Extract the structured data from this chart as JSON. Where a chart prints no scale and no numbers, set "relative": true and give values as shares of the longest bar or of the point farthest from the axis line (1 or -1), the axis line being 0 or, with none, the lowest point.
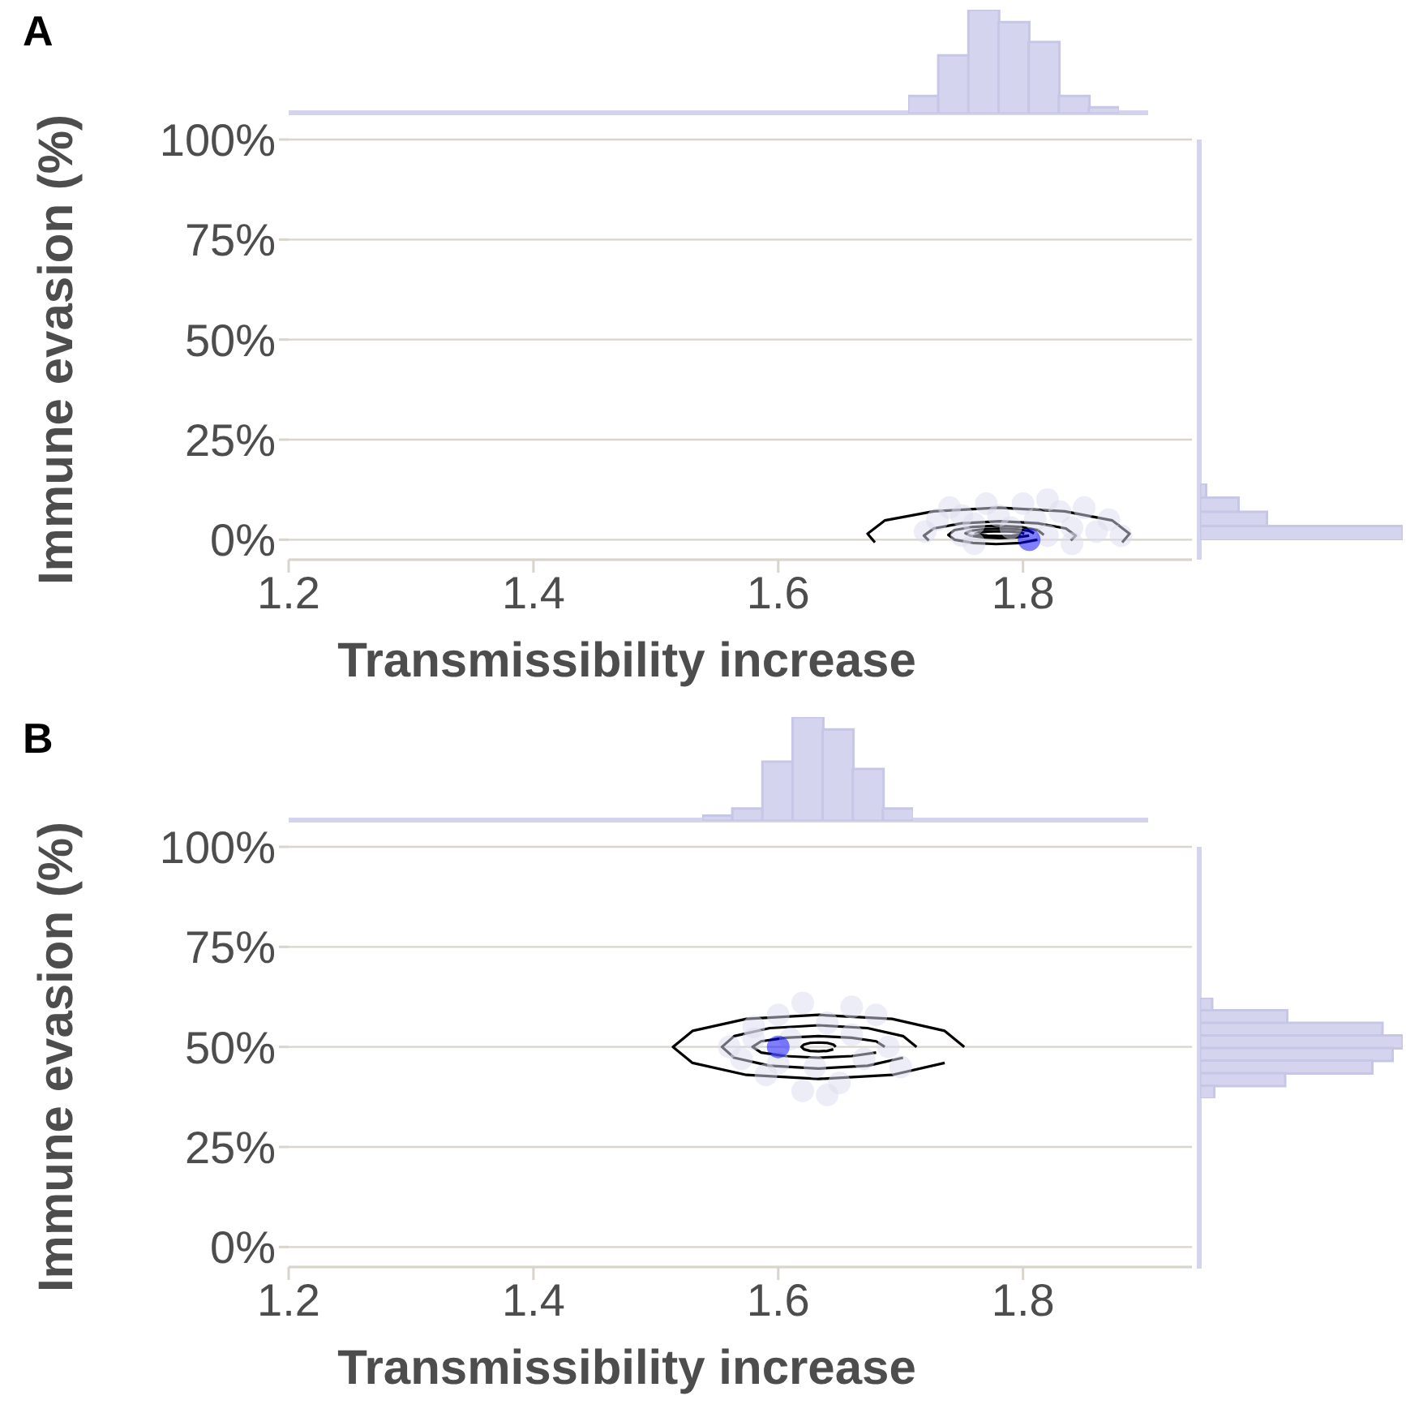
{
  "chart_data": [
    {
      "type": "scatter",
      "title": "A",
      "xlabel": "Transmissibility increase",
      "ylabel": "Immune evasion (%)",
      "xlim": [
        1.2,
        1.938
      ],
      "ylim": [
        -5,
        100
      ],
      "xticks": [
        1.2,
        1.4,
        1.6,
        1.8
      ],
      "yticks": [
        {
          "value": 0,
          "label": "0%"
        },
        {
          "value": 25,
          "label": "25%"
        },
        {
          "value": 50,
          "label": "50%"
        },
        {
          "value": 75,
          "label": "75%"
        },
        {
          "value": 100,
          "label": "100%"
        }
      ],
      "grid": "y",
      "line_style": "solid",
      "series": [
        {
          "type": "scatter",
          "marker": "circle",
          "color": "#dcdcf0",
          "x": [
            1.72,
            1.73,
            1.74,
            1.75,
            1.76,
            1.77,
            1.78,
            1.79,
            1.8,
            1.81,
            1.82,
            1.83,
            1.84,
            1.85,
            1.86,
            1.87,
            1.88,
            1.75,
            1.82,
            1.76,
            1.84
          ],
          "values": [
            2,
            5,
            8,
            1,
            4,
            9,
            6,
            3,
            9,
            5,
            1,
            7,
            3,
            8,
            2,
            5,
            1,
            6,
            10,
            -1,
            -1
          ]
        },
        {
          "type": "line",
          "color": "#000000",
          "x": [
            1.881,
            1.887,
            1.873,
            1.834,
            1.78,
            1.727,
            1.687,
            1.673,
            1.679
          ],
          "values": [
            -0.7,
            1.5,
            4.8,
            7.1,
            8,
            7.1,
            4.8,
            1.5,
            -0.7
          ]
        },
        {
          "type": "line",
          "color": "#000000",
          "x": [
            1.839,
            1.843,
            1.835,
            1.812,
            1.781,
            1.75,
            1.727,
            1.719,
            1.723
          ],
          "values": [
            -0.2,
            1,
            2.8,
            4.1,
            4.6,
            4.1,
            2.8,
            1,
            -0.2
          ]
        },
        {
          "type": "line",
          "color": "#000000",
          "x": [
            1.817,
            1.812,
            1.798,
            1.778,
            1.759,
            1.744,
            1.739,
            1.744,
            1.759,
            1.778,
            1.798,
            1.812
          ],
          "values": [
            1.2,
            2.4,
            3.2,
            3.5,
            3.2,
            2.4,
            1.2,
            0,
            -0.8,
            -1.1,
            -0.8,
            0
          ]
        },
        {
          "type": "line",
          "color": "#000000",
          "x": [
            1.809,
            1.805,
            1.795,
            1.781,
            1.767,
            1.757,
            1.753,
            1.757,
            1.767,
            1.781,
            1.795,
            1.805
          ],
          "values": [
            1.6,
            2.2,
            2.6,
            2.8,
            2.6,
            2.2,
            1.6,
            1,
            0.6,
            0.4,
            0.6,
            1
          ]
        },
        {
          "type": "line",
          "color": "#000000",
          "x": [
            1.801,
            1.798,
            1.791,
            1.781,
            1.771,
            1.764,
            1.761,
            1.764,
            1.771,
            1.781,
            1.791,
            1.798
          ],
          "values": [
            1.5,
            1.8,
            2,
            2.1,
            2,
            1.8,
            1.5,
            1.2,
            1,
            0.9,
            1,
            1.2
          ]
        },
        {
          "type": "scatter",
          "marker": "circle",
          "color": "#0000ff",
          "x": [
            1.805
          ],
          "values": [
            0
          ]
        }
      ]
    },
    {
      "type": "bar",
      "relative": true,
      "color": "#d4d4ee",
      "categories": [
        null,
        null,
        null,
        null,
        null,
        null,
        null
      ],
      "values": [
        0.17,
        0.56,
        1,
        0.88,
        0.69,
        0.17,
        0.06
      ]
    },
    {
      "type": "bar",
      "orientation": "horizontal",
      "relative": true,
      "color": "#d4d4ee",
      "categories": [
        null,
        null,
        null,
        null
      ],
      "values": [
        0.03,
        0.19,
        0.33,
        1
      ]
    },
    {
      "type": "scatter",
      "title": "B",
      "xlabel": "Transmissibility increase",
      "ylabel": "Immune evasion (%)",
      "xlim": [
        1.2,
        1.938
      ],
      "ylim": [
        -5,
        100
      ],
      "xticks": [
        1.2,
        1.4,
        1.6,
        1.8
      ],
      "yticks": [
        {
          "value": 0,
          "label": "0%"
        },
        {
          "value": 25,
          "label": "25%"
        },
        {
          "value": 50,
          "label": "50%"
        },
        {
          "value": 75,
          "label": "75%"
        },
        {
          "value": 100,
          "label": "100%"
        }
      ],
      "grid": "y",
      "line_style": "solid",
      "series": [
        {
          "type": "scatter",
          "marker": "circle",
          "color": "#dcdcf0",
          "x": [
            1.56,
            1.57,
            1.58,
            1.59,
            1.6,
            1.61,
            1.62,
            1.62,
            1.63,
            1.64,
            1.65,
            1.66,
            1.67,
            1.68,
            1.69,
            1.7,
            1.6,
            1.66,
            1.64,
            1.58
          ],
          "values": [
            50,
            47,
            55,
            43,
            58,
            52,
            39,
            61,
            45,
            56,
            41,
            53,
            47,
            58,
            50,
            45,
            46,
            60,
            38,
            52
          ]
        },
        {
          "type": "line",
          "color": "#000000",
          "x": [
            1.752,
            1.736,
            1.693,
            1.633,
            1.574,
            1.53,
            1.514,
            1.53,
            1.574,
            1.633,
            1.693,
            1.736
          ],
          "values": [
            50,
            54,
            57,
            58,
            57,
            54,
            50,
            46,
            43,
            42,
            43,
            46
          ]
        },
        {
          "type": "line",
          "color": "#000000",
          "x": [
            1.713,
            1.702,
            1.673,
            1.633,
            1.593,
            1.564,
            1.554,
            1.564,
            1.593,
            1.633,
            1.673,
            1.702
          ],
          "values": [
            50,
            52.7,
            54.7,
            55.4,
            54.7,
            52.7,
            50,
            47.3,
            45.3,
            44.6,
            45.3,
            47.3
          ]
        },
        {
          "type": "line",
          "color": "#000000",
          "x": [
            1.687,
            1.68,
            1.66,
            1.633,
            1.606,
            1.586,
            1.579,
            1.586,
            1.606,
            1.633,
            1.66,
            1.68
          ],
          "values": [
            50,
            51.4,
            52.3,
            52.7,
            52.3,
            51.4,
            50,
            48.6,
            47.7,
            47.3,
            47.7,
            48.6
          ]
        },
        {
          "type": "line",
          "color": "#000000",
          "x": [
            1.647,
            1.645,
            1.64,
            1.633,
            1.626,
            1.621,
            1.619,
            1.621,
            1.626,
            1.633,
            1.64,
            1.645
          ],
          "values": [
            50,
            50.6,
            51,
            51.1,
            51,
            50.6,
            50,
            49.4,
            49,
            48.9,
            49,
            49.4
          ]
        },
        {
          "type": "scatter",
          "marker": "circle",
          "color": "#0000ff",
          "x": [
            1.6
          ],
          "values": [
            50
          ]
        }
      ]
    },
    {
      "type": "bar",
      "relative": true,
      "color": "#d4d4ee",
      "categories": [
        null,
        null,
        null,
        null,
        null,
        null,
        null
      ],
      "values": [
        0.05,
        0.12,
        0.57,
        1,
        0.88,
        0.5,
        0.12
      ]
    },
    {
      "type": "bar",
      "orientation": "horizontal",
      "relative": true,
      "color": "#d4d4ee",
      "categories": [
        null,
        null,
        null,
        null,
        null,
        null,
        null,
        null
      ],
      "values": [
        0.06,
        0.43,
        0.9,
        1,
        0.95,
        0.85,
        0.42,
        0.07
      ]
    }
  ]
}
